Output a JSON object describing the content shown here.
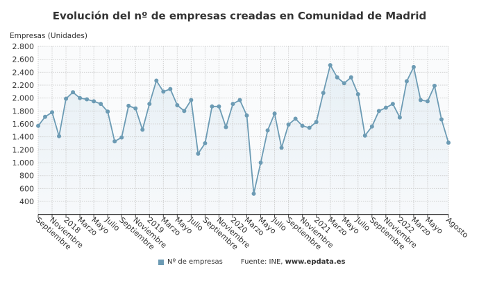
{
  "chart_data": {
    "type": "line",
    "title": "Evolución del nº de empresas creadas en Comunidad de Madrid",
    "ylabel": "Empresas (Unidades)",
    "xlabel": "",
    "ylim": [
      200,
      2800
    ],
    "yticks": [
      400,
      600,
      800,
      1000,
      1200,
      1400,
      1600,
      1800,
      2000,
      2200,
      2400,
      2600,
      2800
    ],
    "ytick_labels": [
      "400",
      "600",
      "800",
      "1.000",
      "1.200",
      "1.400",
      "1.600",
      "1.800",
      "2.000",
      "2.200",
      "2.400",
      "2.600",
      "2.800"
    ],
    "x_tick_labels": [
      {
        "index": 0,
        "label": "Septiembre"
      },
      {
        "index": 2,
        "label": "Noviembre"
      },
      {
        "index": 4,
        "label": "2018"
      },
      {
        "index": 6,
        "label": "Marzo"
      },
      {
        "index": 8,
        "label": "Mayo"
      },
      {
        "index": 10,
        "label": "Julio"
      },
      {
        "index": 12,
        "label": "Septiembre"
      },
      {
        "index": 14,
        "label": "Noviembre"
      },
      {
        "index": 16,
        "label": "2019"
      },
      {
        "index": 18,
        "label": "Marzo"
      },
      {
        "index": 20,
        "label": "Mayo"
      },
      {
        "index": 22,
        "label": "Julio"
      },
      {
        "index": 24,
        "label": "Septiembre"
      },
      {
        "index": 26,
        "label": "Noviembre"
      },
      {
        "index": 28,
        "label": "2020"
      },
      {
        "index": 30,
        "label": "Marzo"
      },
      {
        "index": 32,
        "label": "Mayo"
      },
      {
        "index": 34,
        "label": "Julio"
      },
      {
        "index": 36,
        "label": "Septiembre"
      },
      {
        "index": 38,
        "label": "Noviembre"
      },
      {
        "index": 40,
        "label": "2021"
      },
      {
        "index": 42,
        "label": "Marzo"
      },
      {
        "index": 44,
        "label": "Mayo"
      },
      {
        "index": 46,
        "label": "Julio"
      },
      {
        "index": 48,
        "label": "Septiembre"
      },
      {
        "index": 50,
        "label": "Noviembre"
      },
      {
        "index": 52,
        "label": "2022"
      },
      {
        "index": 54,
        "label": "Marzo"
      },
      {
        "index": 56,
        "label": "Mayo"
      },
      {
        "index": 59,
        "label": "Agosto"
      }
    ],
    "x": [
      "2017-09",
      "2017-10",
      "2017-11",
      "2017-12",
      "2018-01",
      "2018-02",
      "2018-03",
      "2018-04",
      "2018-05",
      "2018-06",
      "2018-07",
      "2018-08",
      "2018-09",
      "2018-10",
      "2018-11",
      "2018-12",
      "2019-01",
      "2019-02",
      "2019-03",
      "2019-04",
      "2019-05",
      "2019-06",
      "2019-07",
      "2019-08",
      "2019-09",
      "2019-10",
      "2019-11",
      "2019-12",
      "2020-01",
      "2020-02",
      "2020-03",
      "2020-04",
      "2020-05",
      "2020-06",
      "2020-07",
      "2020-08",
      "2020-09",
      "2020-10",
      "2020-11",
      "2020-12",
      "2021-01",
      "2021-02",
      "2021-03",
      "2021-04",
      "2021-05",
      "2021-06",
      "2021-07",
      "2021-08",
      "2021-09",
      "2021-10",
      "2021-11",
      "2021-12",
      "2022-01",
      "2022-02",
      "2022-03",
      "2022-04",
      "2022-05",
      "2022-06",
      "2022-07",
      "2022-08"
    ],
    "series": [
      {
        "name": "Nº de empresas",
        "color": "#6c9bb4",
        "values": [
          1570,
          1710,
          1780,
          1410,
          1990,
          2090,
          2000,
          1980,
          1950,
          1910,
          1790,
          1330,
          1390,
          1880,
          1840,
          1510,
          1910,
          2270,
          2100,
          2140,
          1890,
          1800,
          1970,
          1140,
          1300,
          1870,
          1870,
          1550,
          1910,
          1970,
          1730,
          520,
          1000,
          1500,
          1760,
          1230,
          1590,
          1680,
          1570,
          1540,
          1630,
          2080,
          2510,
          2320,
          2230,
          2320,
          2060,
          1420,
          1560,
          1800,
          1850,
          1910,
          1700,
          2260,
          2480,
          1970,
          1950,
          2190,
          1670,
          1310
        ]
      }
    ],
    "grid": true,
    "legend": "bottom"
  },
  "legend": {
    "series_label": "Nº de empresas",
    "source_prefix": "Fuente: INE,",
    "source_site": "www.epdata.es"
  }
}
